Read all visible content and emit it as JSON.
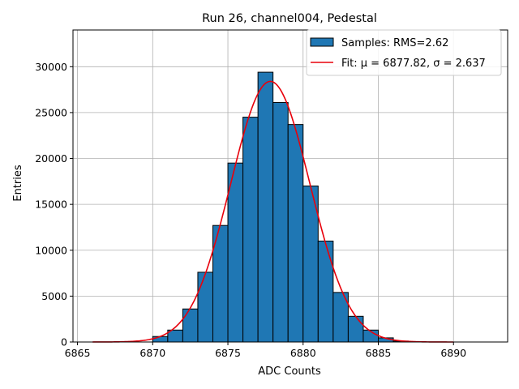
{
  "chart_data": {
    "type": "bar",
    "title": "Run 26, channel004, Pedestal",
    "xlabel": "ADC Counts",
    "ylabel": "Entries",
    "xlim": [
      6864.7,
      6893.6
    ],
    "ylim": [
      0,
      34000
    ],
    "xticks": [
      6865,
      6870,
      6875,
      6880,
      6885,
      6890
    ],
    "yticks": [
      0,
      5000,
      10000,
      15000,
      20000,
      25000,
      30000
    ],
    "grid": true,
    "legend_position": "top-right",
    "bin_width": 1,
    "bins": [
      {
        "x": 6870,
        "value": 600
      },
      {
        "x": 6871,
        "value": 1300
      },
      {
        "x": 6872,
        "value": 3600
      },
      {
        "x": 6873,
        "value": 7600
      },
      {
        "x": 6874,
        "value": 12700
      },
      {
        "x": 6875,
        "value": 19500
      },
      {
        "x": 6876,
        "value": 24500
      },
      {
        "x": 6877,
        "value": 29400
      },
      {
        "x": 6878,
        "value": 26100
      },
      {
        "x": 6879,
        "value": 23700
      },
      {
        "x": 6880,
        "value": 17000
      },
      {
        "x": 6881,
        "value": 11000
      },
      {
        "x": 6882,
        "value": 5400
      },
      {
        "x": 6883,
        "value": 2800
      },
      {
        "x": 6884,
        "value": 1300
      },
      {
        "x": 6885,
        "value": 450
      },
      {
        "x": 6886,
        "value": 100
      }
    ],
    "fit": {
      "type": "gaussian",
      "mu": 6877.82,
      "sigma": 2.637,
      "amplitude": 28400,
      "x_range": [
        6866,
        6890
      ]
    },
    "series": [
      {
        "name": "Samples: RMS=2.62",
        "kind": "histogram",
        "color": "#1f77b4"
      },
      {
        "name": "Fit: μ = 6877.82, σ = 2.637",
        "kind": "line",
        "color": "#e8000b"
      }
    ]
  }
}
